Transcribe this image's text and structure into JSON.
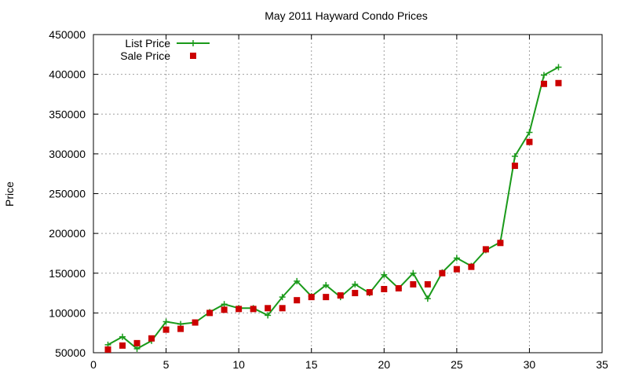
{
  "chart_data": {
    "type": "line",
    "title": "May 2011 Hayward Condo Prices",
    "xlabel": "",
    "ylabel": "Price",
    "xlim": [
      0,
      35
    ],
    "ylim": [
      50000,
      450000
    ],
    "x_ticks": [
      0,
      5,
      10,
      15,
      20,
      25,
      30,
      35
    ],
    "y_ticks": [
      50000,
      100000,
      150000,
      200000,
      250000,
      300000,
      350000,
      400000,
      450000
    ],
    "grid": true,
    "legend_position": "top-left",
    "series": [
      {
        "name": "List Price",
        "style": "line-with-plus-markers",
        "color": "#1a9a1a",
        "x": [
          1,
          2,
          3,
          4,
          5,
          6,
          7,
          8,
          9,
          10,
          11,
          12,
          13,
          14,
          15,
          16,
          17,
          18,
          19,
          20,
          21,
          22,
          23,
          24,
          25,
          26,
          27,
          28,
          29,
          30,
          31,
          32
        ],
        "values": [
          60000,
          70000,
          55000,
          65000,
          89000,
          86000,
          88000,
          101000,
          111000,
          106000,
          106000,
          97000,
          120000,
          140000,
          121000,
          135000,
          120000,
          136000,
          125000,
          148000,
          131000,
          150000,
          118000,
          151000,
          169000,
          159000,
          179000,
          189000,
          297000,
          327000,
          399000,
          409000
        ]
      },
      {
        "name": "Sale Price",
        "style": "square-markers",
        "color": "#cc0000",
        "x": [
          1,
          2,
          3,
          4,
          5,
          6,
          7,
          8,
          9,
          10,
          11,
          12,
          13,
          14,
          15,
          16,
          17,
          18,
          19,
          20,
          21,
          22,
          23,
          24,
          25,
          26,
          27,
          28,
          29,
          30,
          31,
          32
        ],
        "values": [
          54000,
          59000,
          62000,
          68000,
          79000,
          80000,
          88000,
          100000,
          104000,
          105000,
          105000,
          106000,
          106000,
          116000,
          120000,
          120000,
          122000,
          125000,
          126000,
          130000,
          131000,
          136000,
          136000,
          150000,
          155000,
          158000,
          180000,
          188000,
          285000,
          315000,
          388000,
          389000
        ]
      }
    ]
  }
}
